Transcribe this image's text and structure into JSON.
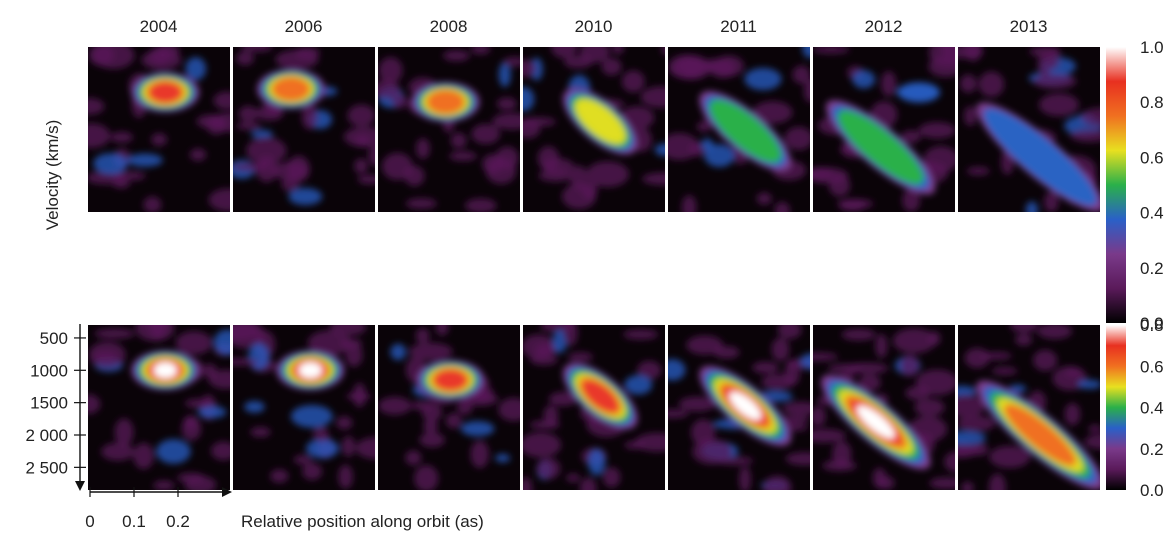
{
  "chart_data": {
    "type": "heatmap",
    "years": [
      "2004",
      "2006",
      "2008",
      "2010",
      "2011",
      "2012",
      "2013"
    ],
    "ylabel_top": "Velocity (km/s)",
    "xlabel": "Relative position along orbit (as)",
    "velocity_ticks": [
      "500",
      "1000",
      "1500",
      "2 000",
      "2 500"
    ],
    "velocity_values": [
      500,
      1000,
      1500,
      2000,
      2500
    ],
    "velocity_range": [
      300,
      2850
    ],
    "position_ticks": [
      "0",
      "0.1",
      "0.2"
    ],
    "position_values": [
      0,
      0.1,
      0.2
    ],
    "position_range": [
      0,
      0.3
    ],
    "colorbar_top_ticks": [
      "1.0",
      "0.8",
      "0.6",
      "0.4",
      "0.2",
      "0.0"
    ],
    "colorbar_bottom_ticks": [
      "0.8",
      "0.6",
      "0.4",
      "0.2",
      "0.0"
    ],
    "colormap": [
      "#000000",
      "#5a1a5a",
      "#7a3a8a",
      "#2a60c8",
      "#2ab04a",
      "#e8e020",
      "#f07020",
      "#e83020",
      "#ffffff"
    ],
    "rows": [
      {
        "name": "top",
        "panels": [
          {
            "year": "2004",
            "peak_position": 0.16,
            "peak_velocity": 1000,
            "peak_intensity": 0.9
          },
          {
            "year": "2006",
            "peak_position": 0.12,
            "peak_velocity": 950,
            "peak_intensity": 0.85
          },
          {
            "year": "2008",
            "peak_position": 0.14,
            "peak_velocity": 1150,
            "peak_intensity": 0.85
          },
          {
            "year": "2010",
            "peak_position": 0.16,
            "peak_velocity": 1450,
            "peak_intensity": 0.65
          },
          {
            "year": "2011",
            "peak_position": 0.16,
            "peak_velocity": 1600,
            "peak_intensity": 0.6
          },
          {
            "year": "2012",
            "peak_position": 0.14,
            "peak_velocity": 1850,
            "peak_intensity": 0.5
          },
          {
            "year": "2013",
            "peak_position": 0.17,
            "peak_velocity": 2000,
            "peak_intensity": 0.45
          }
        ]
      },
      {
        "name": "bottom",
        "panels": [
          {
            "year": "2004",
            "peak_position": 0.16,
            "peak_velocity": 1000,
            "peak_intensity": 1.0
          },
          {
            "year": "2006",
            "peak_position": 0.16,
            "peak_velocity": 1000,
            "peak_intensity": 1.0
          },
          {
            "year": "2008",
            "peak_position": 0.15,
            "peak_velocity": 1150,
            "peak_intensity": 0.95
          },
          {
            "year": "2010",
            "peak_position": 0.16,
            "peak_velocity": 1400,
            "peak_intensity": 0.95
          },
          {
            "year": "2011",
            "peak_position": 0.16,
            "peak_velocity": 1550,
            "peak_intensity": 1.0
          },
          {
            "year": "2012",
            "peak_position": 0.13,
            "peak_velocity": 1800,
            "peak_intensity": 1.0
          },
          {
            "year": "2013",
            "peak_position": 0.17,
            "peak_velocity": 2000,
            "peak_intensity": 0.85
          }
        ]
      }
    ]
  }
}
